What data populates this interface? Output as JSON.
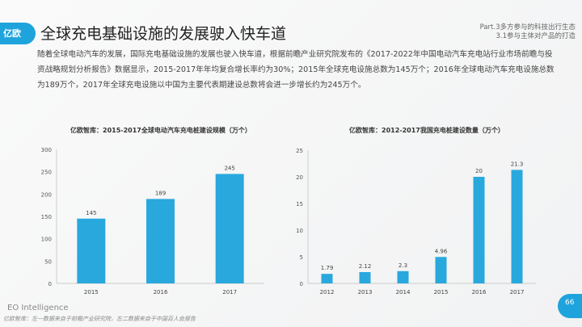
{
  "header": {
    "logo_text": "亿欧",
    "title": "全球充电基础设施的发展驶入快车道",
    "part": "Part.3多方参与的科技出行生态",
    "section": "3.1参与主体对产品的打造"
  },
  "paragraph": "随着全球电动汽车的发展，国际充电基础设施的发展也驶入快车道，根据前瞻产业研究院发布的《2017-2022年中国电动汽车充电站行业市场前瞻与投资战略规划分析报告》数据显示，2015-2017年年均复合增长率约为30%；2015年全球充电设施总数为145万个；2016年全球电动汽车充电设施总数为189万个，2017年全球充电设施以中国为主要代表期建设总数将会进一步增长约为245万个。",
  "footer": {
    "brand": "EO Intelligence",
    "note": "亿欧智库：左一数据来自于前瞻产业研究院，左二数据来自于中国百人会报告",
    "page": "66"
  },
  "colors": {
    "bar": "#29a8de",
    "accent": "#1fa3dc"
  },
  "chart_data": [
    {
      "type": "bar",
      "title": "亿欧智库：2015-2017全球电动汽车充电桩建设规模（万个）",
      "categories": [
        "2015",
        "2016",
        "2017"
      ],
      "values": [
        145,
        189,
        245
      ],
      "ylim": [
        0,
        300
      ],
      "yticks": [
        0,
        50,
        100,
        150,
        200,
        250,
        300
      ],
      "grid": false
    },
    {
      "type": "bar",
      "title": "亿欧智库：2012-2017我国充电桩建设数量（万个）",
      "categories": [
        "2012",
        "2013",
        "2014",
        "2015",
        "2016",
        "2017"
      ],
      "values": [
        1.79,
        2.12,
        2.3,
        4.96,
        20,
        21.3
      ],
      "ylim": [
        0,
        25
      ],
      "yticks": [
        0,
        5,
        10,
        15,
        20,
        25
      ],
      "grid": false
    }
  ]
}
